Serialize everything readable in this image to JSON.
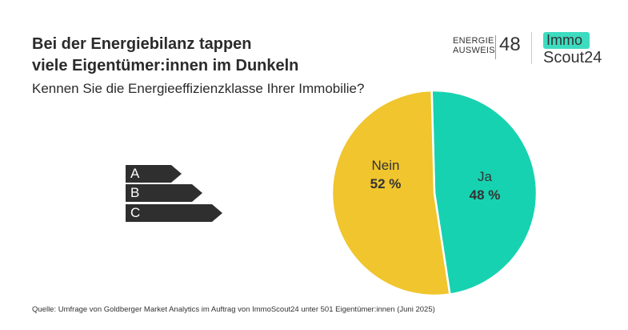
{
  "title_line1": "Bei der Energiebilanz tappen",
  "title_line2": "viele Eigentümer:innen im Dunkeln",
  "subtitle": "Kennen Sie die Energieeffizienzklasse Ihrer Immobilie?",
  "logos": {
    "energieausweis_line1": "ENERGIE",
    "energieausweis_line2": "AUSWEIS",
    "energieausweis_number": "48",
    "immoscout_part1": "Immo",
    "immoscout_part2": "Scout24"
  },
  "efficiency_labels": [
    "A",
    "B",
    "C"
  ],
  "source": "Quelle: Umfrage von Goldberger Market Analytics im Auftrag von ImmoScout24 unter 501 Eigentümer:innen (Juni 2025)",
  "colors": {
    "nein": "#f0c52d",
    "ja": "#17d2b0",
    "label_dark": "#2f2f2f",
    "immo_accent": "#3ddcc0"
  },
  "chart_data": {
    "type": "pie",
    "series": [
      {
        "label": "Nein",
        "value_label": "52 %",
        "value": 52,
        "color": "#f0c52d"
      },
      {
        "label": "Ja",
        "value_label": "48 %",
        "value": 48,
        "color": "#17d2b0"
      }
    ]
  }
}
